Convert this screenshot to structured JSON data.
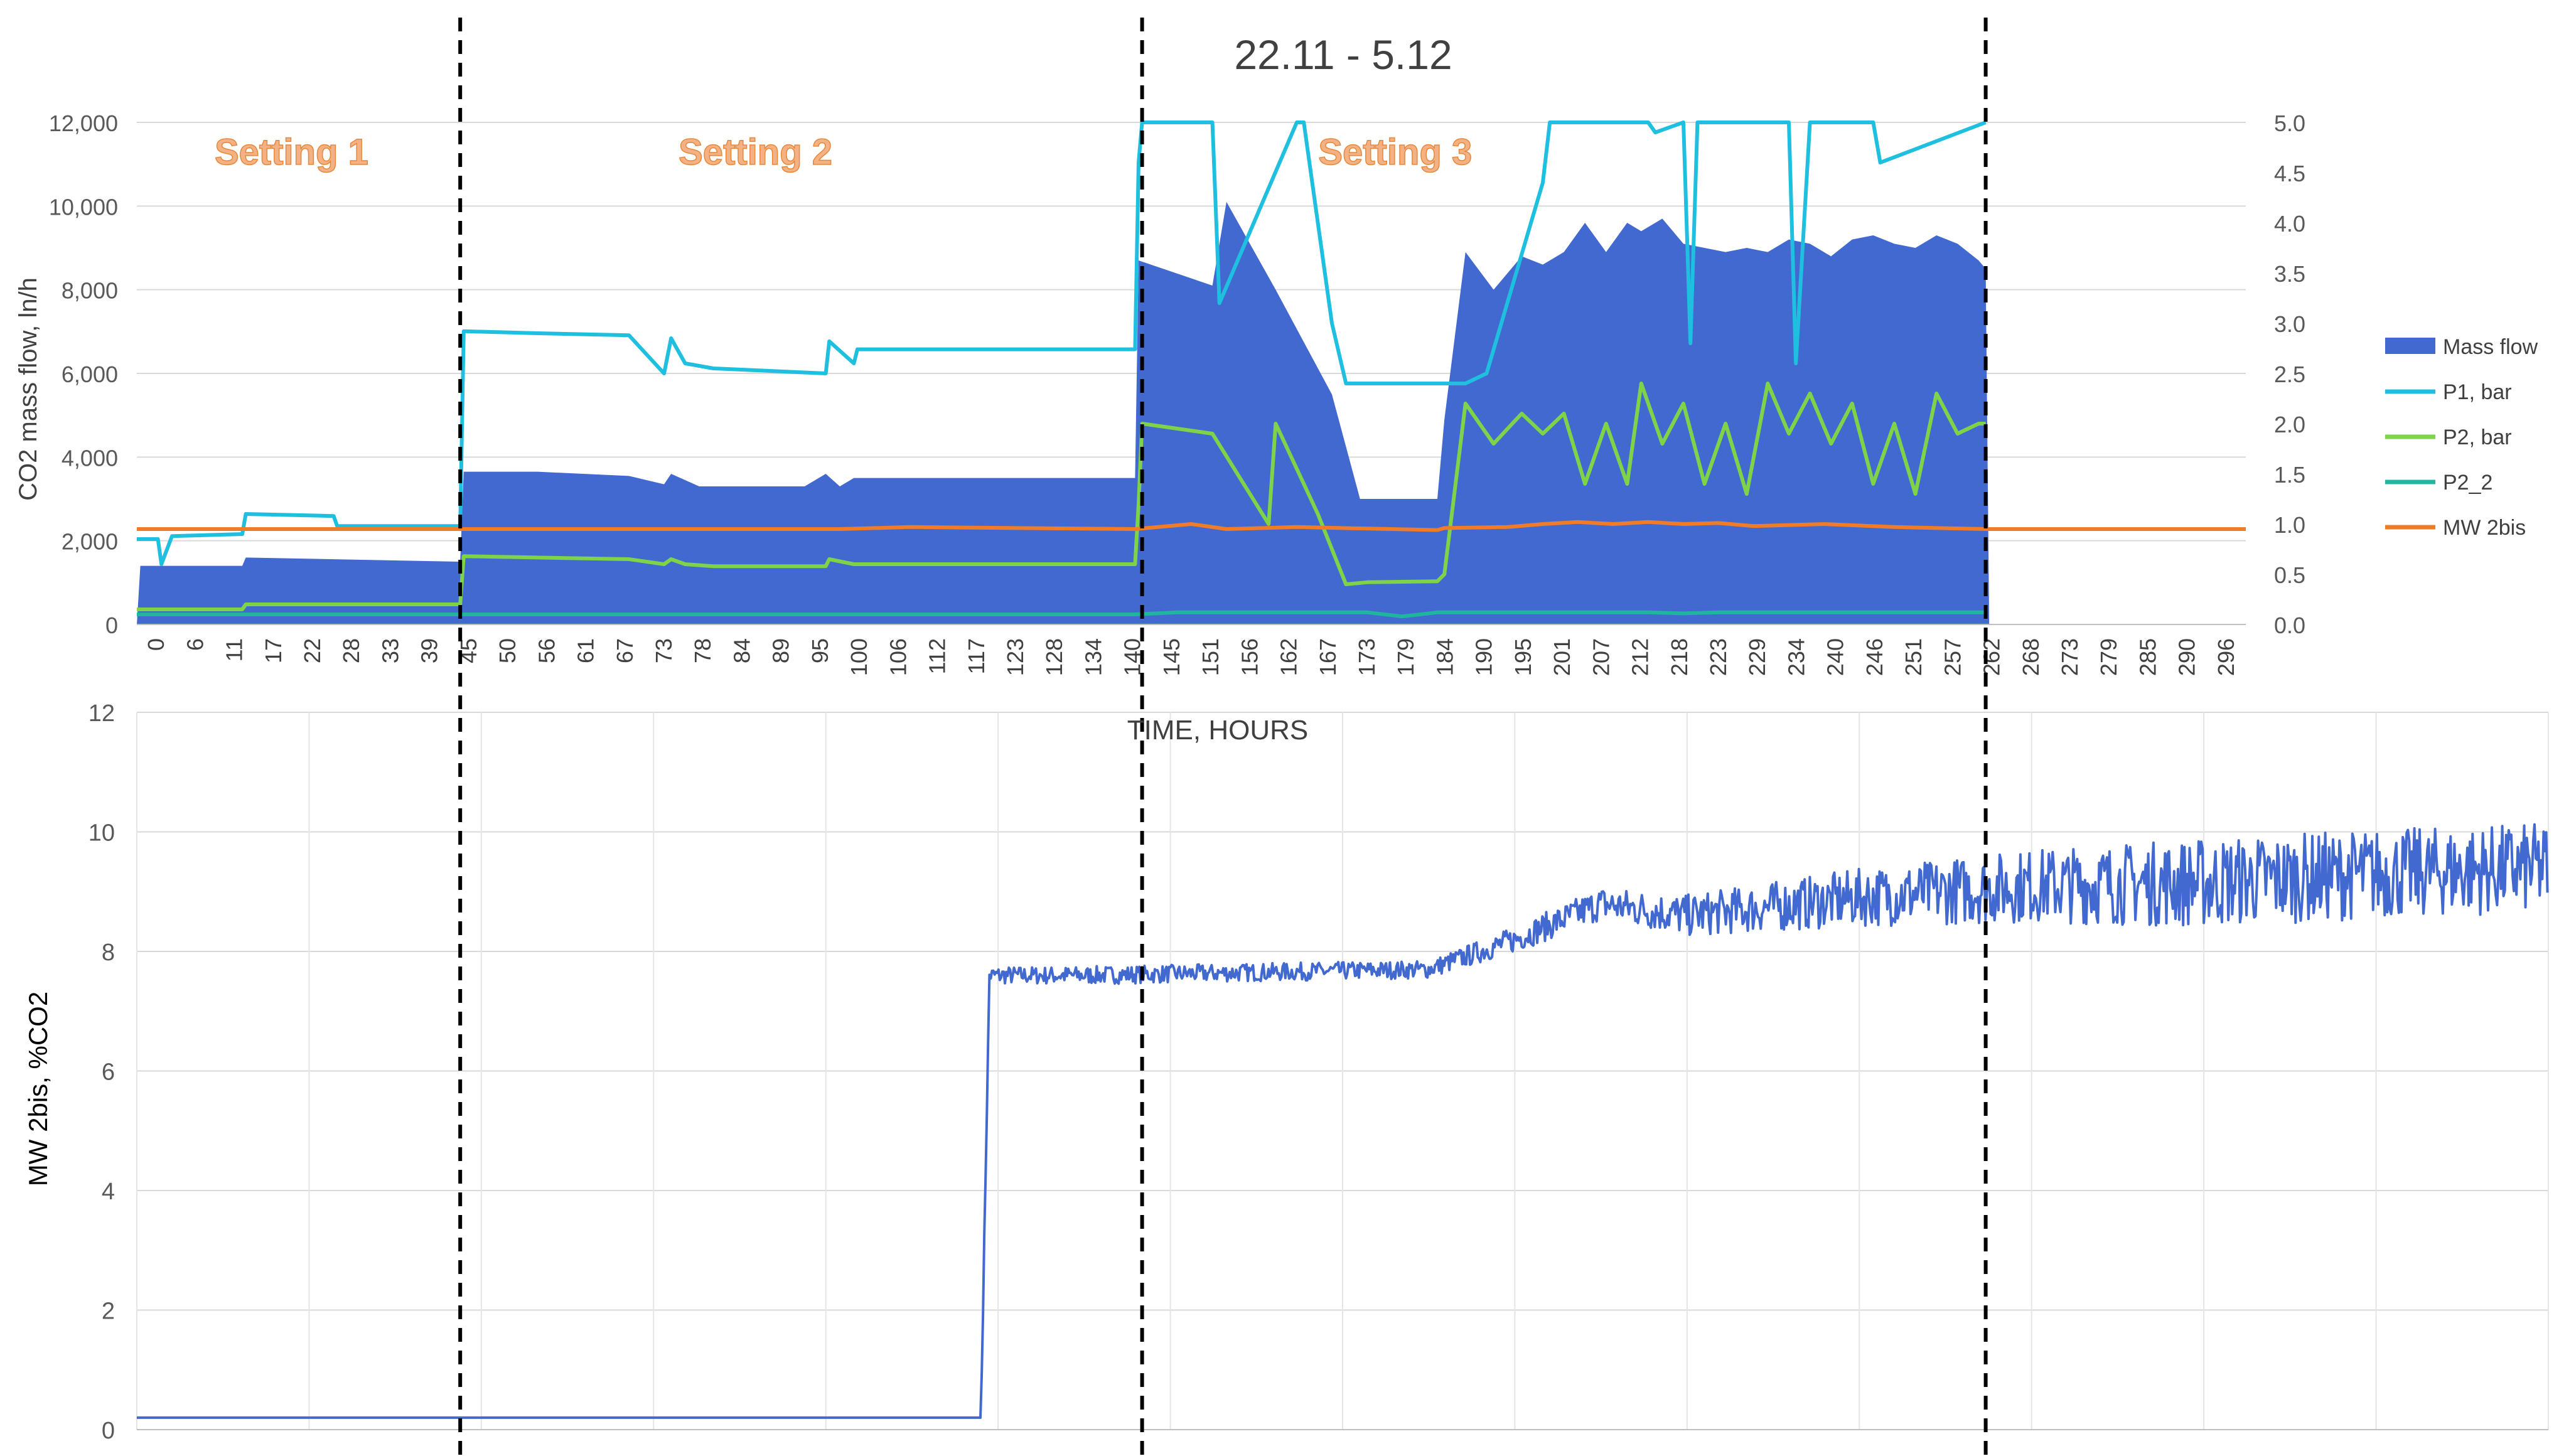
{
  "chart_data": [
    {
      "type": "bar",
      "title": "22.11  - 5.12",
      "xlabel": "TIME, HOURS",
      "ylabel": "CO2 mass flow, ln/h",
      "ylim": [
        0,
        12000
      ],
      "y_ticks": [
        "0",
        "2,000",
        "4,000",
        "6,000",
        "8,000",
        "10,000",
        "12,000"
      ],
      "y2lim": [
        0,
        5
      ],
      "y2_ticks": [
        "0.0",
        "0.5",
        "1.0",
        "1.5",
        "2.0",
        "2.5",
        "3.0",
        "3.5",
        "4.0",
        "4.5",
        "5.0"
      ],
      "x_range": [
        0,
        300
      ],
      "x_ticks": [
        "0",
        "6",
        "11",
        "17",
        "22",
        "28",
        "33",
        "39",
        "45",
        "50",
        "56",
        "61",
        "67",
        "73",
        "78",
        "84",
        "89",
        "95",
        "100",
        "106",
        "112",
        "117",
        "123",
        "128",
        "134",
        "140",
        "145",
        "151",
        "156",
        "162",
        "167",
        "173",
        "179",
        "184",
        "190",
        "195",
        "201",
        "207",
        "212",
        "218",
        "223",
        "229",
        "234",
        "240",
        "246",
        "251",
        "257",
        "262",
        "268",
        "273",
        "279",
        "285",
        "290",
        "296"
      ],
      "legend_position": "right",
      "grid": true,
      "annotations": [
        {
          "text": "Setting 1",
          "x": 22
        },
        {
          "text": "Setting 2",
          "x": 88
        },
        {
          "text": "Setting 3",
          "x": 179
        }
      ],
      "dividers_x": [
        46,
        143,
        263
      ],
      "series": [
        {
          "name": "Mass flow",
          "type": "bar",
          "color": "#4169CF",
          "x": [
            0,
            0.5,
            15,
            15.5,
            46,
            46.5,
            57,
            70,
            75,
            76,
            80,
            95,
            98,
            100,
            102,
            142,
            142.5,
            153,
            155,
            162,
            170,
            174,
            175,
            185,
            186,
            189,
            193,
            197,
            200,
            203,
            206,
            209,
            212,
            214,
            217,
            220,
            223,
            226,
            229,
            232,
            235,
            238,
            241,
            244,
            247,
            250,
            253,
            256,
            259,
            262,
            263,
            263.5
          ],
          "values": [
            0,
            1400,
            1400,
            1600,
            1500,
            3650,
            3650,
            3550,
            3350,
            3600,
            3300,
            3300,
            3600,
            3300,
            3500,
            3500,
            8700,
            8100,
            10100,
            8000,
            5500,
            3000,
            3000,
            3000,
            4900,
            8900,
            8000,
            8800,
            8600,
            8900,
            9600,
            8900,
            9600,
            9400,
            9700,
            9100,
            9000,
            8900,
            9000,
            8900,
            9200,
            9100,
            8800,
            9200,
            9300,
            9100,
            9000,
            9300,
            9100,
            8700,
            8500,
            0
          ]
        },
        {
          "name": "P1, bar",
          "type": "line",
          "color": "#1FBFDF",
          "x": [
            0,
            3,
            3.5,
            5,
            15,
            15.5,
            28,
            28.5,
            46,
            46.5,
            57,
            70,
            75,
            76,
            78,
            82,
            98,
            98.5,
            102,
            102.5,
            142,
            142.5,
            143,
            144,
            153,
            154,
            165,
            166,
            170,
            172,
            186,
            189,
            192,
            200,
            201,
            215,
            216,
            220,
            221,
            222,
            235,
            236,
            238,
            242,
            247,
            248,
            263
          ],
          "values": [
            0.85,
            0.85,
            0.6,
            0.88,
            0.9,
            1.1,
            1.08,
            0.98,
            0.98,
            2.92,
            2.9,
            2.88,
            2.5,
            2.85,
            2.6,
            2.55,
            2.5,
            2.82,
            2.6,
            2.74,
            2.74,
            4.6,
            5.0,
            5.0,
            5.0,
            3.2,
            5.0,
            5.0,
            3.0,
            2.4,
            2.4,
            2.4,
            2.5,
            4.4,
            5.0,
            5.0,
            4.9,
            5.0,
            2.8,
            5.0,
            5.0,
            2.6,
            5.0,
            5.0,
            5.0,
            4.6,
            5.0
          ]
        },
        {
          "name": "P2, bar",
          "type": "line",
          "color": "#7ED348",
          "x": [
            0,
            15,
            15.5,
            46,
            46.5,
            70,
            75,
            76,
            78,
            82,
            98,
            98.5,
            102,
            102.5,
            142,
            142.5,
            143,
            153,
            161,
            162,
            168,
            172,
            175,
            185,
            186,
            189,
            193,
            197,
            200,
            203,
            206,
            209,
            212,
            214,
            217,
            220,
            223,
            226,
            229,
            232,
            235,
            238,
            241,
            244,
            247,
            250,
            253,
            256,
            259,
            262,
            263
          ],
          "values": [
            0.15,
            0.15,
            0.2,
            0.2,
            0.68,
            0.65,
            0.6,
            0.65,
            0.6,
            0.58,
            0.58,
            0.65,
            0.6,
            0.6,
            0.6,
            1.2,
            2.0,
            1.9,
            1.0,
            2.0,
            1.1,
            0.4,
            0.42,
            0.43,
            0.5,
            2.2,
            1.8,
            2.1,
            1.9,
            2.1,
            1.4,
            2.0,
            1.4,
            2.4,
            1.8,
            2.2,
            1.4,
            2.0,
            1.3,
            2.4,
            1.9,
            2.3,
            1.8,
            2.2,
            1.4,
            2.0,
            1.3,
            2.3,
            1.9,
            2.0,
            2.0
          ]
        },
        {
          "name": "P2_2",
          "type": "line",
          "color": "#1FB59E",
          "x": [
            0,
            142,
            145,
            148,
            175,
            180,
            185,
            215,
            220,
            225,
            263
          ],
          "values": [
            0.1,
            0.1,
            0.11,
            0.12,
            0.12,
            0.08,
            0.12,
            0.12,
            0.11,
            0.12,
            0.12
          ]
        },
        {
          "name": "MW 2bis",
          "type": "line",
          "color": "#F07C28",
          "x": [
            0,
            46,
            100,
            110,
            142,
            150,
            155,
            165,
            185,
            186,
            195,
            200,
            205,
            210,
            215,
            220,
            225,
            230,
            240,
            250,
            263,
            300
          ],
          "values": [
            0.95,
            0.95,
            0.95,
            0.97,
            0.95,
            1.0,
            0.95,
            0.97,
            0.94,
            0.96,
            0.97,
            1.0,
            1.02,
            1.0,
            1.02,
            1.0,
            1.01,
            0.98,
            1.0,
            0.97,
            0.95,
            0.95
          ]
        }
      ]
    },
    {
      "type": "line",
      "ylabel": "MW 2bis, %CO2",
      "ylim": [
        0,
        12
      ],
      "y_ticks": [
        "0",
        "2",
        "4",
        "6",
        "8",
        "10",
        "12"
      ],
      "x_range": [
        0,
        280
      ],
      "grid": true,
      "series": [
        {
          "color": "#4169CF",
          "x": [
            0,
            98,
            99,
            110,
            150,
            160,
            170,
            180,
            200,
            220,
            240,
            260,
            280
          ],
          "values": [
            0.2,
            0.2,
            7.6,
            7.6,
            7.7,
            8.2,
            8.8,
            8.6,
            8.9,
            9.1,
            9.15,
            9.3,
            9.4
          ]
        }
      ]
    }
  ]
}
